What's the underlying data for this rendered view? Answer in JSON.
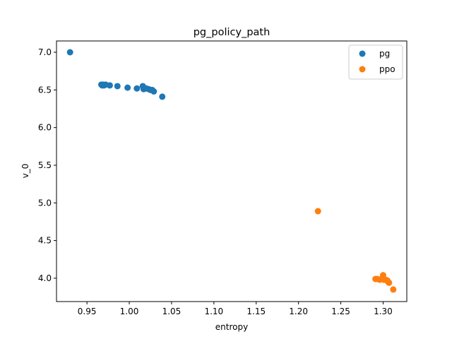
{
  "chart_data": {
    "type": "scatter",
    "title": "pg_policy_path",
    "xlabel": "entropy",
    "ylabel": "v_0",
    "xlim": [
      0.914,
      1.328
    ],
    "ylim": [
      3.69,
      7.15
    ],
    "xticks": [
      "0.95",
      "1.00",
      "1.05",
      "1.10",
      "1.15",
      "1.20",
      "1.25",
      "1.30"
    ],
    "yticks": [
      "4.0",
      "4.5",
      "5.0",
      "5.5",
      "6.0",
      "6.5",
      "7.0"
    ],
    "grid": false,
    "legend_position": "top-right",
    "series": [
      {
        "name": "pg",
        "color": "#1f77b4",
        "points": [
          [
            0.93,
            7.0
          ],
          [
            0.967,
            6.57
          ],
          [
            0.968,
            6.56
          ],
          [
            0.969,
            6.57
          ],
          [
            0.97,
            6.56
          ],
          [
            0.972,
            6.57
          ],
          [
            0.977,
            6.56
          ],
          [
            0.986,
            6.55
          ],
          [
            0.998,
            6.53
          ],
          [
            1.009,
            6.52
          ],
          [
            1.016,
            6.55
          ],
          [
            1.017,
            6.51
          ],
          [
            1.02,
            6.52
          ],
          [
            1.023,
            6.51
          ],
          [
            1.025,
            6.5
          ],
          [
            1.027,
            6.5
          ],
          [
            1.029,
            6.48
          ],
          [
            1.039,
            6.41
          ]
        ]
      },
      {
        "name": "ppo",
        "color": "#ff7f0e",
        "points": [
          [
            1.223,
            4.89
          ],
          [
            1.291,
            3.99
          ],
          [
            1.293,
            3.99
          ],
          [
            1.296,
            3.98
          ],
          [
            1.298,
            3.99
          ],
          [
            1.3,
            4.04
          ],
          [
            1.301,
            3.98
          ],
          [
            1.303,
            3.98
          ],
          [
            1.305,
            3.97
          ],
          [
            1.306,
            3.95
          ],
          [
            1.307,
            3.94
          ],
          [
            1.312,
            3.85
          ]
        ]
      }
    ]
  }
}
